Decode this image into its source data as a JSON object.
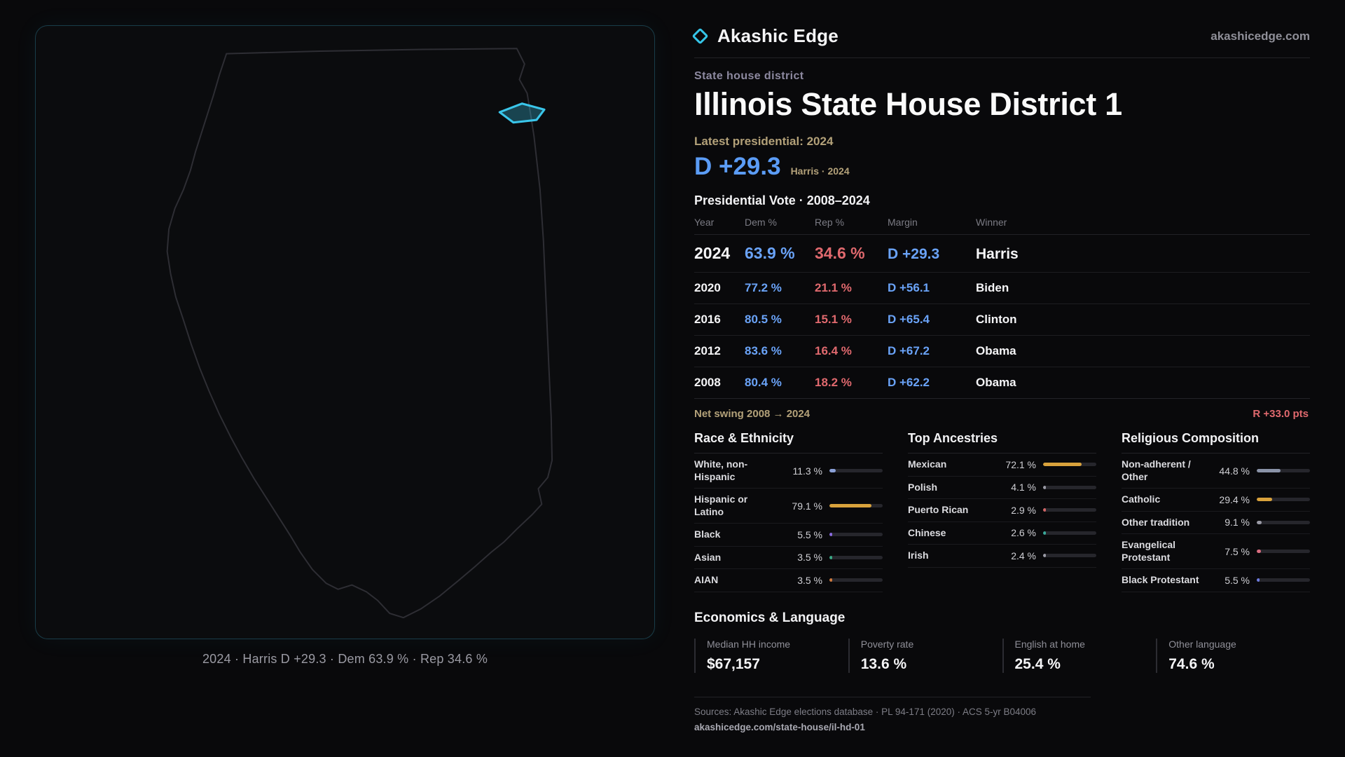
{
  "brand": {
    "name": "Akashic Edge",
    "site": "akashicedge.com",
    "accent": "#35c5e8"
  },
  "map": {
    "caption": "2024 · Harris D +29.3 · Dem 63.9 % · Rep 34.6 %",
    "highlight_color": "#35c5e8"
  },
  "header": {
    "kicker": "State house district",
    "title": "Illinois State House District 1",
    "latest": "Latest presidential: 2024",
    "margin_big": "D +29.3",
    "margin_note": "Harris · 2024"
  },
  "vote": {
    "title": "Presidential Vote · 2008–2024",
    "columns": [
      "Year",
      "Dem %",
      "Rep %",
      "Margin",
      "Winner"
    ],
    "rows": [
      {
        "year": "2024",
        "dem": "63.9 %",
        "rep": "34.6 %",
        "margin": "D +29.3",
        "winner": "Harris",
        "featured": true
      },
      {
        "year": "2020",
        "dem": "77.2 %",
        "rep": "21.1 %",
        "margin": "D +56.1",
        "winner": "Biden",
        "featured": false
      },
      {
        "year": "2016",
        "dem": "80.5 %",
        "rep": "15.1 %",
        "margin": "D +65.4",
        "winner": "Clinton",
        "featured": false
      },
      {
        "year": "2012",
        "dem": "83.6 %",
        "rep": "16.4 %",
        "margin": "D +67.2",
        "winner": "Obama",
        "featured": false
      },
      {
        "year": "2008",
        "dem": "80.4 %",
        "rep": "18.2 %",
        "margin": "D +62.2",
        "winner": "Obama",
        "featured": false
      }
    ],
    "dem_color": "#6aa3f8",
    "rep_color": "#e0696e"
  },
  "swing": {
    "label": "Net swing 2008 → 2024",
    "value": "R +33.0 pts"
  },
  "panels": [
    {
      "title": "Race & Ethnicity",
      "items": [
        {
          "label": "White, non-Hispanic",
          "value": "11.3 %",
          "pct": 11.3,
          "color": "#8aa0d8"
        },
        {
          "label": "Hispanic or Latino",
          "value": "79.1 %",
          "pct": 79.1,
          "color": "#d9a23c"
        },
        {
          "label": "Black",
          "value": "5.5 %",
          "pct": 5.5,
          "color": "#8a6ae0"
        },
        {
          "label": "Asian",
          "value": "3.5 %",
          "pct": 3.5,
          "color": "#3aa884"
        },
        {
          "label": "AIAN",
          "value": "3.5 %",
          "pct": 3.5,
          "color": "#cf7a3e"
        }
      ]
    },
    {
      "title": "Top Ancestries",
      "items": [
        {
          "label": "Mexican",
          "value": "72.1 %",
          "pct": 72.1,
          "color": "#d9a23c"
        },
        {
          "label": "Polish",
          "value": "4.1 %",
          "pct": 4.1,
          "color": "#9a9aa5"
        },
        {
          "label": "Puerto Rican",
          "value": "2.9 %",
          "pct": 2.9,
          "color": "#d06565"
        },
        {
          "label": "Chinese",
          "value": "2.6 %",
          "pct": 2.6,
          "color": "#3aa89a"
        },
        {
          "label": "Irish",
          "value": "2.4 %",
          "pct": 2.4,
          "color": "#9a9aa5"
        }
      ]
    },
    {
      "title": "Religious Composition",
      "items": [
        {
          "label": "Non-adherent / Other",
          "value": "44.8 %",
          "pct": 44.8,
          "color": "#8a93a8"
        },
        {
          "label": "Catholic",
          "value": "29.4 %",
          "pct": 29.4,
          "color": "#d9a23c"
        },
        {
          "label": "Other tradition",
          "value": "9.1 %",
          "pct": 9.1,
          "color": "#9a9aa5"
        },
        {
          "label": "Evangelical Protestant",
          "value": "7.5 %",
          "pct": 7.5,
          "color": "#da6d80"
        },
        {
          "label": "Black Protestant",
          "value": "5.5 %",
          "pct": 5.5,
          "color": "#6e7ce0"
        }
      ]
    }
  ],
  "economics": {
    "title": "Economics & Language",
    "stats": [
      {
        "label": "Median HH income",
        "value": "$67,157"
      },
      {
        "label": "Poverty rate",
        "value": "13.6 %"
      },
      {
        "label": "English at home",
        "value": "25.4 %"
      },
      {
        "label": "Other language",
        "value": "74.6 %"
      }
    ]
  },
  "footer": {
    "sources": "Sources: Akashic Edge elections database · PL 94-171 (2020) · ACS 5-yr B04006",
    "permalink": "akashicedge.com/state-house/il-hd-01"
  }
}
